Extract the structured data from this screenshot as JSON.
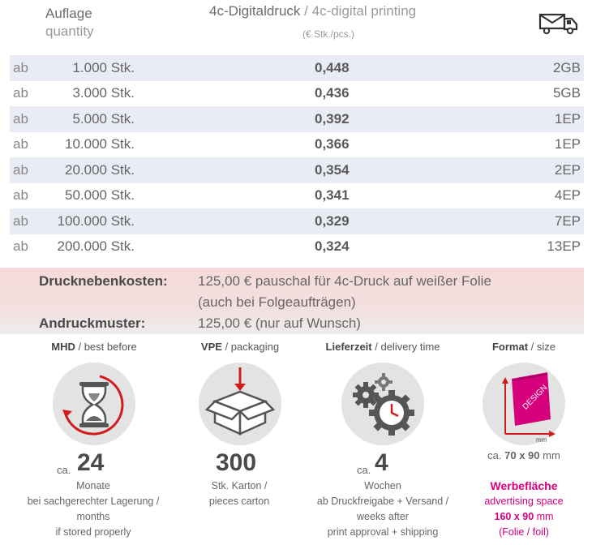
{
  "header": {
    "quantity_de": "Auflage",
    "quantity_en": "quantity",
    "print_de": "4c-Digitaldruck",
    "print_sep": " / ",
    "print_en": "4c-digital printing",
    "unit": "(€ Stk./pcs.)"
  },
  "rows": [
    {
      "ab": "ab",
      "qty": "1.000 Stk.",
      "price": "0,448",
      "ship": "2GB"
    },
    {
      "ab": "ab",
      "qty": "3.000 Stk.",
      "price": "0,436",
      "ship": "5GB"
    },
    {
      "ab": "ab",
      "qty": "5.000 Stk.",
      "price": "0,392",
      "ship": "1EP"
    },
    {
      "ab": "ab",
      "qty": "10.000 Stk.",
      "price": "0,366",
      "ship": "1EP"
    },
    {
      "ab": "ab",
      "qty": "20.000 Stk.",
      "price": "0,354",
      "ship": "2EP"
    },
    {
      "ab": "ab",
      "qty": "50.000 Stk.",
      "price": "0,341",
      "ship": "4EP"
    },
    {
      "ab": "ab",
      "qty": "100.000 Stk.",
      "price": "0,329",
      "ship": "7EP"
    },
    {
      "ab": "ab",
      "qty": "200.000 Stk.",
      "price": "0,324",
      "ship": "13EP"
    }
  ],
  "costs": {
    "label1": "Drucknebenkosten:",
    "text1a": "125,00 € pauschal für 4c-Druck auf weißer Folie",
    "text1b": "(auch bei Folgeaufträgen)",
    "label2": "Andruckmuster:",
    "text2": "125,00 € (nur auf Wunsch)"
  },
  "features": {
    "mhd": {
      "title_de": "MHD",
      "title_en": "best before",
      "prefix": "ca.",
      "value": "24",
      "l1": "Monate",
      "l2": "bei sachgerechter Lagerung /",
      "l3": "months",
      "l4": "if stored properly"
    },
    "vpe": {
      "title_de": "VPE",
      "title_en": "packaging",
      "value": "300",
      "l1": "Stk. Karton /",
      "l2": "pieces carton"
    },
    "lief": {
      "title_de": "Lieferzeit",
      "title_en": "delivery time",
      "prefix": "ca.",
      "value": "4",
      "l1": "Wochen",
      "l2": "ab Druckfreigabe + Versand /",
      "l3": "weeks after",
      "l4": "print approval + shipping"
    },
    "format": {
      "title_de": "Format",
      "title_en": "size",
      "design": "DESIGN",
      "mm": "mm",
      "size_prefix": "ca.",
      "size_value": "70 x 90",
      "size_unit": "mm",
      "ad_de": "Werbefläche",
      "ad_en": "advertising space",
      "ad_value": "160 x 90",
      "ad_unit": "mm",
      "ad_foil": "(Folie / foil)"
    }
  }
}
